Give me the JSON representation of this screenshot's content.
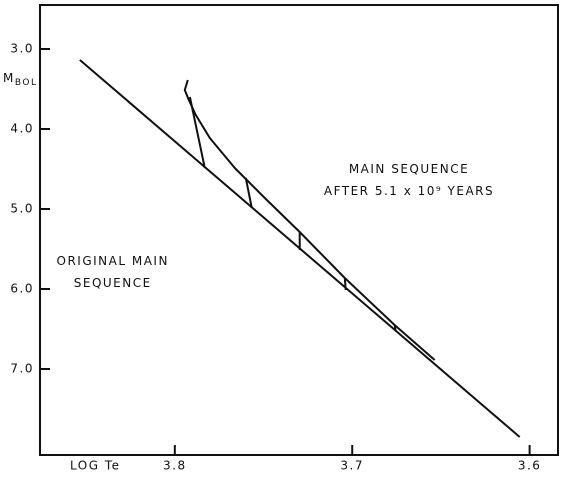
{
  "chart_data": {
    "type": "line",
    "xlabel": "LOG Te",
    "ylabel": {
      "main": "M",
      "sub": "BOL"
    },
    "xlim": [
      3.876,
      3.584
    ],
    "ylim": [
      2.45,
      8.075
    ],
    "y_inverted": true,
    "xticks": [
      3.8,
      3.7,
      3.6
    ],
    "yticks": [
      {
        "value": 3,
        "label": "3.0"
      },
      {
        "value": 4,
        "label": "4.0"
      },
      {
        "value": 5,
        "label": "5.0"
      },
      {
        "value": 6,
        "label": "6.0"
      },
      {
        "value": 7,
        "label": "7.0"
      }
    ],
    "color": "#111111",
    "series": [
      {
        "x": [
          3.8535,
          3.6056
        ],
        "values": [
          3.1375,
          7.85
        ]
      },
      {
        "x": [
          3.7927,
          3.7944,
          3.7921,
          3.7882,
          3.7803,
          3.7662,
          3.7493,
          3.7296,
          3.7042,
          3.6761,
          3.6535
        ],
        "values": [
          3.3875,
          3.5125,
          3.6375,
          3.825,
          4.1125,
          4.4875,
          4.8625,
          5.2875,
          5.8625,
          6.45,
          6.8875
        ]
      },
      {
        "x": [
          3.7915,
          3.7831,
          null,
          3.76,
          3.7566,
          null,
          3.7296,
          3.7296,
          null,
          3.7042,
          3.7037,
          null,
          3.6761,
          3.6755
        ],
        "values": [
          3.6,
          4.4875,
          null,
          4.6125,
          4.9875,
          null,
          5.2875,
          5.5125,
          null,
          5.8625,
          6.0125,
          null,
          6.45,
          6.525
        ]
      }
    ],
    "annotations": [
      {
        "lines": [
          "MAIN SEQUENCE",
          "AFTER 5.1 x 10⁹ YEARS"
        ],
        "x": 3.668,
        "y": 4.5
      },
      {
        "lines": [
          "ORIGINAL MAIN",
          "SEQUENCE"
        ],
        "x": 3.835,
        "y": 5.65
      }
    ]
  }
}
